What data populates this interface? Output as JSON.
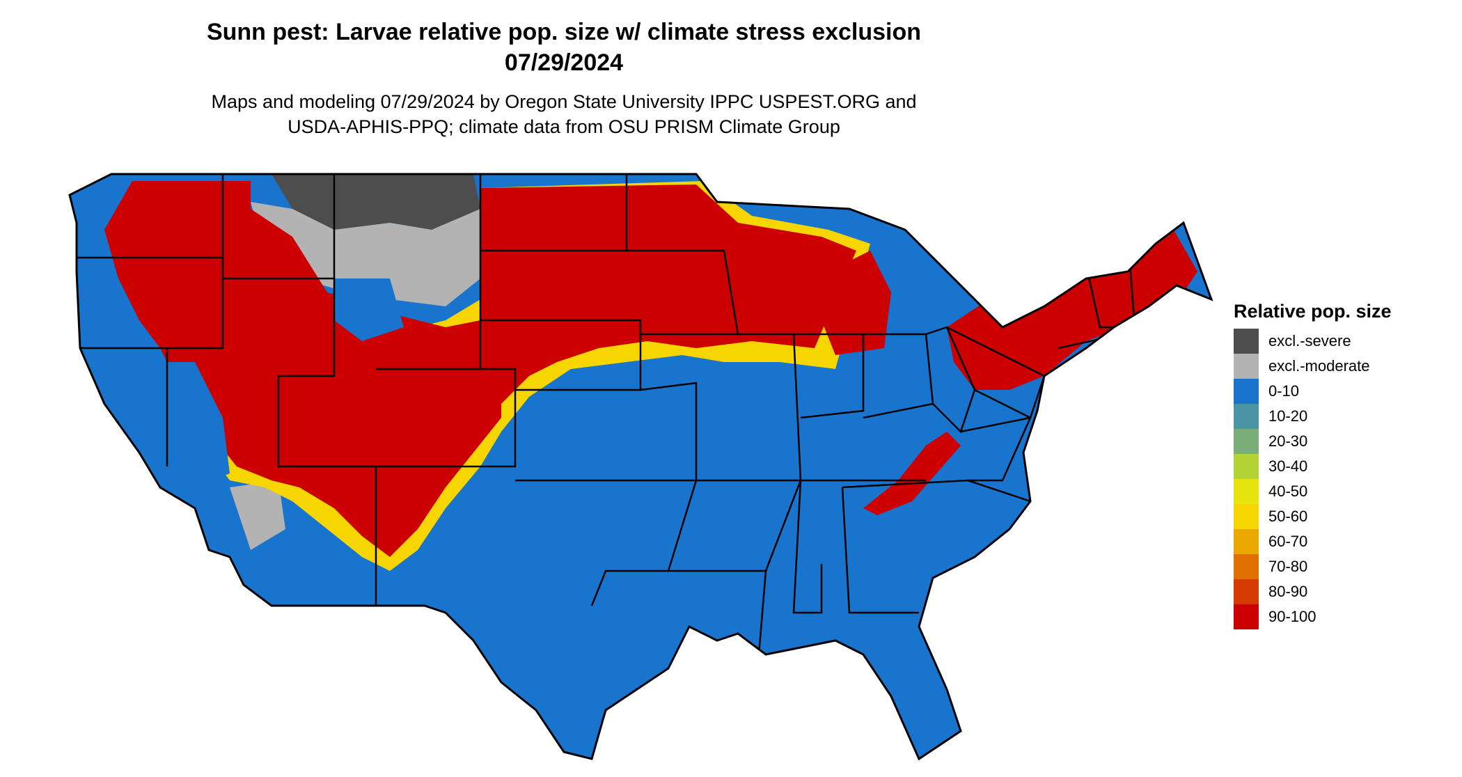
{
  "title": {
    "line1": "Sunn pest: Larvae relative pop. size w/ climate stress exclusion",
    "line2": "07/29/2024"
  },
  "subtitle": {
    "line1": "Maps and modeling 07/29/2024 by Oregon State University IPPC USPEST.ORG and",
    "line2": "USDA-APHIS-PPQ; climate data from OSU PRISM Climate Group"
  },
  "legend": {
    "title": "Relative pop. size",
    "items": [
      {
        "label": "excl.-severe",
        "color": "#4d4d4d"
      },
      {
        "label": "excl.-moderate",
        "color": "#b3b3b3"
      },
      {
        "label": "0-10",
        "color": "#1874cd"
      },
      {
        "label": "10-20",
        "color": "#4a94a5"
      },
      {
        "label": "20-30",
        "color": "#7bad7b"
      },
      {
        "label": "30-40",
        "color": "#b2d235"
      },
      {
        "label": "40-50",
        "color": "#e5e510"
      },
      {
        "label": "50-60",
        "color": "#f7d500"
      },
      {
        "label": "60-70",
        "color": "#eda800"
      },
      {
        "label": "70-80",
        "color": "#e07000"
      },
      {
        "label": "80-90",
        "color": "#d63a00"
      },
      {
        "label": "90-100",
        "color": "#cc0000"
      }
    ]
  },
  "map_regions": {
    "severe_exclusion": "northern Montana",
    "moderate_exclusion": "Montana, Wyoming highlands, Nevada/California deserts",
    "high_population": "Pacific Northwest, Intermountain West, Northern Plains, Upper Midwest, Michigan, New York, New England, Appalachians",
    "low_population": "South, Southeast, Southwest, Southern Plains, Midwest south of Iowa"
  }
}
